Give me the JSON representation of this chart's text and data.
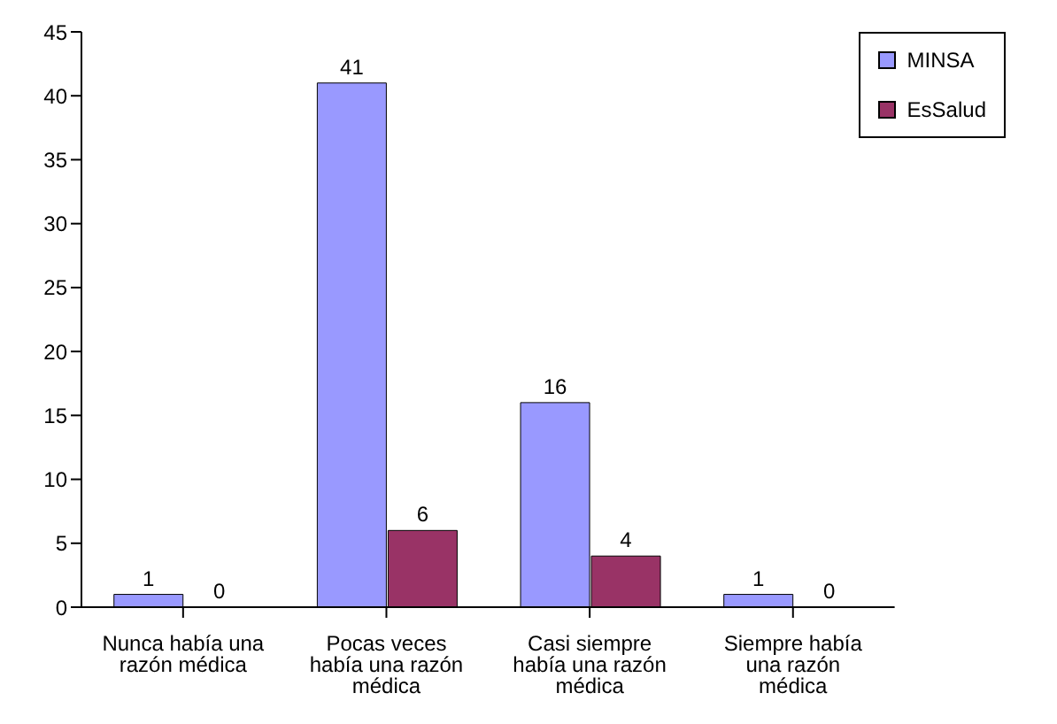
{
  "chart_data": {
    "type": "bar",
    "categories": [
      "Nunca había una razón médica",
      "Pocas veces había una razón médica",
      "Casi siempre había una razón médica",
      "Siempre había una razón médica"
    ],
    "series": [
      {
        "name": "MINSA",
        "color": "#9999ff",
        "values": [
          1,
          41,
          16,
          1
        ]
      },
      {
        "name": "EsSalud",
        "color": "#993366",
        "values": [
          0,
          6,
          4,
          0
        ]
      }
    ],
    "ylim": [
      0,
      45
    ],
    "yticks": [
      0,
      5,
      10,
      15,
      20,
      25,
      30,
      35,
      40,
      45
    ],
    "data_labels": true,
    "grid": false,
    "legend": "top right"
  }
}
